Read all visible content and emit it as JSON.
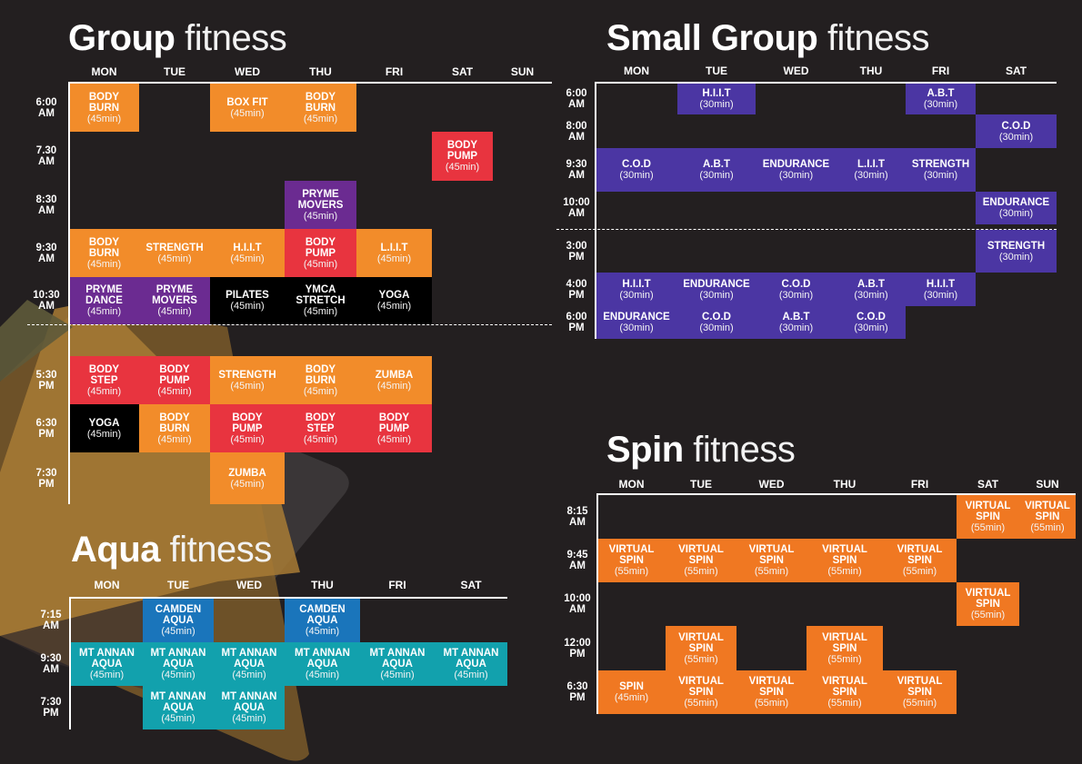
{
  "colors": {
    "orange": "#f28c2a",
    "red": "#e8343f",
    "purple": "#6b2b91",
    "black": "#000000",
    "indigo": "#4b36a3",
    "spin": "#f07822",
    "blue": "#1a75bb",
    "teal": "#12a1ad"
  },
  "tables": {
    "group": {
      "title_bold": "Group",
      "title_light": "fitness",
      "days": [
        "MON",
        "TUE",
        "WED",
        "THU",
        "FRI",
        "SAT",
        "SUN"
      ],
      "times": [
        "6:00\nAM",
        "7.30\nAM",
        "8:30\nAM",
        "9:30\nAM",
        "10:30\nAM",
        "5:30\nPM",
        "6:30\nPM",
        "7:30\nPM"
      ],
      "classes": [
        {
          "day": 0,
          "time": 0,
          "name": "BODY\nBURN",
          "duration": "(45min)",
          "color": "orange"
        },
        {
          "day": 2,
          "time": 0,
          "name": "BOX FIT",
          "duration": "(45min)",
          "color": "orange"
        },
        {
          "day": 3,
          "time": 0,
          "name": "BODY\nBURN",
          "duration": "(45min)",
          "color": "orange"
        },
        {
          "day": 5,
          "time": 1,
          "name": "BODY\nPUMP",
          "duration": "(45min)",
          "color": "red"
        },
        {
          "day": 3,
          "time": 2,
          "name": "PRYME\nMOVERS",
          "duration": "(45min)",
          "color": "purple"
        },
        {
          "day": 0,
          "time": 3,
          "name": "BODY\nBURN",
          "duration": "(45min)",
          "color": "orange"
        },
        {
          "day": 1,
          "time": 3,
          "name": "STRENGTH",
          "duration": "(45min)",
          "color": "orange"
        },
        {
          "day": 2,
          "time": 3,
          "name": "H.I.I.T",
          "duration": "(45min)",
          "color": "orange"
        },
        {
          "day": 3,
          "time": 3,
          "name": "BODY\nPUMP",
          "duration": "(45min)",
          "color": "red"
        },
        {
          "day": 4,
          "time": 3,
          "name": "L.I.I.T",
          "duration": "(45min)",
          "color": "orange"
        },
        {
          "day": 0,
          "time": 4,
          "name": "PRYME\nDANCE",
          "duration": "(45min)",
          "color": "purple"
        },
        {
          "day": 1,
          "time": 4,
          "name": "PRYME\nMOVERS",
          "duration": "(45min)",
          "color": "purple"
        },
        {
          "day": 2,
          "time": 4,
          "name": "PILATES",
          "duration": "(45min)",
          "color": "black"
        },
        {
          "day": 3,
          "time": 4,
          "name": "YMCA\nSTRETCH",
          "duration": "(45min)",
          "color": "black"
        },
        {
          "day": 4,
          "time": 4,
          "name": "YOGA",
          "duration": "(45min)",
          "color": "black"
        },
        {
          "day": 0,
          "time": 5,
          "name": "BODY\nSTEP",
          "duration": "(45min)",
          "color": "red"
        },
        {
          "day": 1,
          "time": 5,
          "name": "BODY\nPUMP",
          "duration": "(45min)",
          "color": "red"
        },
        {
          "day": 2,
          "time": 5,
          "name": "STRENGTH",
          "duration": "(45min)",
          "color": "orange"
        },
        {
          "day": 3,
          "time": 5,
          "name": "BODY\nBURN",
          "duration": "(45min)",
          "color": "orange"
        },
        {
          "day": 4,
          "time": 5,
          "name": "ZUMBA",
          "duration": "(45min)",
          "color": "orange"
        },
        {
          "day": 0,
          "time": 6,
          "name": "YOGA",
          "duration": "(45min)",
          "color": "black"
        },
        {
          "day": 1,
          "time": 6,
          "name": "BODY\nBURN",
          "duration": "(45min)",
          "color": "orange"
        },
        {
          "day": 2,
          "time": 6,
          "name": "BODY\nPUMP",
          "duration": "(45min)",
          "color": "red"
        },
        {
          "day": 3,
          "time": 6,
          "name": "BODY\nSTEP",
          "duration": "(45min)",
          "color": "red"
        },
        {
          "day": 4,
          "time": 6,
          "name": "BODY\nPUMP",
          "duration": "(45min)",
          "color": "red"
        },
        {
          "day": 2,
          "time": 7,
          "name": "ZUMBA",
          "duration": "(45min)",
          "color": "orange"
        }
      ]
    },
    "small_group": {
      "title_bold": "Small Group",
      "title_light": "fitness",
      "days": [
        "MON",
        "TUE",
        "WED",
        "THU",
        "FRI",
        "SAT"
      ],
      "times": [
        "6:00\nAM",
        "8:00\nAM",
        "9:30\nAM",
        "10:00\nAM",
        "3:00\nPM",
        "4:00\nPM",
        "6:00\nPM"
      ],
      "classes": [
        {
          "day": 1,
          "time": 0,
          "name": "H.I.I.T",
          "duration": "(30min)",
          "color": "indigo"
        },
        {
          "day": 4,
          "time": 0,
          "name": "A.B.T",
          "duration": "(30min)",
          "color": "indigo"
        },
        {
          "day": 5,
          "time": 1,
          "name": "C.O.D",
          "duration": "(30min)",
          "color": "indigo"
        },
        {
          "day": 0,
          "time": 2,
          "name": "C.O.D",
          "duration": "(30min)",
          "color": "indigo"
        },
        {
          "day": 1,
          "time": 2,
          "name": "A.B.T",
          "duration": "(30min)",
          "color": "indigo"
        },
        {
          "day": 2,
          "time": 2,
          "name": "ENDURANCE",
          "duration": "(30min)",
          "color": "indigo"
        },
        {
          "day": 3,
          "time": 2,
          "name": "L.I.I.T",
          "duration": "(30min)",
          "color": "indigo"
        },
        {
          "day": 4,
          "time": 2,
          "name": "STRENGTH",
          "duration": "(30min)",
          "color": "indigo"
        },
        {
          "day": 5,
          "time": 3,
          "name": "ENDURANCE",
          "duration": "(30min)",
          "color": "indigo"
        },
        {
          "day": 5,
          "time": 4,
          "name": "STRENGTH",
          "duration": "(30min)",
          "color": "indigo"
        },
        {
          "day": 0,
          "time": 5,
          "name": "H.I.I.T",
          "duration": "(30min)",
          "color": "indigo"
        },
        {
          "day": 1,
          "time": 5,
          "name": "ENDURANCE",
          "duration": "(30min)",
          "color": "indigo"
        },
        {
          "day": 2,
          "time": 5,
          "name": "C.O.D",
          "duration": "(30min)",
          "color": "indigo"
        },
        {
          "day": 3,
          "time": 5,
          "name": "A.B.T",
          "duration": "(30min)",
          "color": "indigo"
        },
        {
          "day": 4,
          "time": 5,
          "name": "H.I.I.T",
          "duration": "(30min)",
          "color": "indigo"
        },
        {
          "day": 0,
          "time": 6,
          "name": "ENDURANCE",
          "duration": "(30min)",
          "color": "indigo"
        },
        {
          "day": 1,
          "time": 6,
          "name": "C.O.D",
          "duration": "(30min)",
          "color": "indigo"
        },
        {
          "day": 2,
          "time": 6,
          "name": "A.B.T",
          "duration": "(30min)",
          "color": "indigo"
        },
        {
          "day": 3,
          "time": 6,
          "name": "C.O.D",
          "duration": "(30min)",
          "color": "indigo"
        }
      ]
    },
    "spin": {
      "title_bold": "Spin",
      "title_light": "fitness",
      "days": [
        "MON",
        "TUE",
        "WED",
        "THU",
        "FRI",
        "SAT",
        "SUN"
      ],
      "times": [
        "8:15\nAM",
        "9:45\nAM",
        "10:00\nAM",
        "12:00\nPM",
        "6:30\nPM"
      ],
      "classes": [
        {
          "day": 5,
          "time": 0,
          "name": "VIRTUAL\nSPIN",
          "duration": "(55min)",
          "color": "spin"
        },
        {
          "day": 6,
          "time": 0,
          "name": "VIRTUAL\nSPIN",
          "duration": "(55min)",
          "color": "spin"
        },
        {
          "day": 0,
          "time": 1,
          "name": "VIRTUAL\nSPIN",
          "duration": "(55min)",
          "color": "spin"
        },
        {
          "day": 1,
          "time": 1,
          "name": "VIRTUAL\nSPIN",
          "duration": "(55min)",
          "color": "spin"
        },
        {
          "day": 2,
          "time": 1,
          "name": "VIRTUAL\nSPIN",
          "duration": "(55min)",
          "color": "spin"
        },
        {
          "day": 3,
          "time": 1,
          "name": "VIRTUAL\nSPIN",
          "duration": "(55min)",
          "color": "spin"
        },
        {
          "day": 4,
          "time": 1,
          "name": "VIRTUAL\nSPIN",
          "duration": "(55min)",
          "color": "spin"
        },
        {
          "day": 5,
          "time": 2,
          "name": "VIRTUAL\nSPIN",
          "duration": "(55min)",
          "color": "spin"
        },
        {
          "day": 1,
          "time": 3,
          "name": "VIRTUAL\nSPIN",
          "duration": "(55min)",
          "color": "spin"
        },
        {
          "day": 3,
          "time": 3,
          "name": "VIRTUAL\nSPIN",
          "duration": "(55min)",
          "color": "spin"
        },
        {
          "day": 0,
          "time": 4,
          "name": "SPIN",
          "duration": "(45min)",
          "color": "spin"
        },
        {
          "day": 1,
          "time": 4,
          "name": "VIRTUAL\nSPIN",
          "duration": "(55min)",
          "color": "spin"
        },
        {
          "day": 2,
          "time": 4,
          "name": "VIRTUAL\nSPIN",
          "duration": "(55min)",
          "color": "spin"
        },
        {
          "day": 3,
          "time": 4,
          "name": "VIRTUAL\nSPIN",
          "duration": "(55min)",
          "color": "spin"
        },
        {
          "day": 4,
          "time": 4,
          "name": "VIRTUAL\nSPIN",
          "duration": "(55min)",
          "color": "spin"
        }
      ]
    },
    "aqua": {
      "title_bold": "Aqua",
      "title_light": "fitness",
      "days": [
        "MON",
        "TUE",
        "WED",
        "THU",
        "FRI",
        "SAT"
      ],
      "times": [
        "7:15\nAM",
        "9:30\nAM",
        "7:30\nPM"
      ],
      "classes": [
        {
          "day": 1,
          "time": 0,
          "name": "CAMDEN\nAQUA",
          "duration": "(45min)",
          "color": "blue"
        },
        {
          "day": 3,
          "time": 0,
          "name": "CAMDEN\nAQUA",
          "duration": "(45min)",
          "color": "blue"
        },
        {
          "day": 0,
          "time": 1,
          "name": "MT ANNAN\nAQUA",
          "duration": "(45min)",
          "color": "teal"
        },
        {
          "day": 1,
          "time": 1,
          "name": "MT ANNAN\nAQUA",
          "duration": "(45min)",
          "color": "teal"
        },
        {
          "day": 2,
          "time": 1,
          "name": "MT ANNAN\nAQUA",
          "duration": "(45min)",
          "color": "teal"
        },
        {
          "day": 3,
          "time": 1,
          "name": "MT ANNAN\nAQUA",
          "duration": "(45min)",
          "color": "teal"
        },
        {
          "day": 4,
          "time": 1,
          "name": "MT ANNAN\nAQUA",
          "duration": "(45min)",
          "color": "teal"
        },
        {
          "day": 5,
          "time": 1,
          "name": "MT ANNAN\nAQUA",
          "duration": "(45min)",
          "color": "teal"
        },
        {
          "day": 1,
          "time": 2,
          "name": "MT ANNAN\nAQUA",
          "duration": "(45min)",
          "color": "teal"
        },
        {
          "day": 2,
          "time": 2,
          "name": "MT ANNAN\nAQUA",
          "duration": "(45min)",
          "color": "teal"
        }
      ]
    }
  }
}
